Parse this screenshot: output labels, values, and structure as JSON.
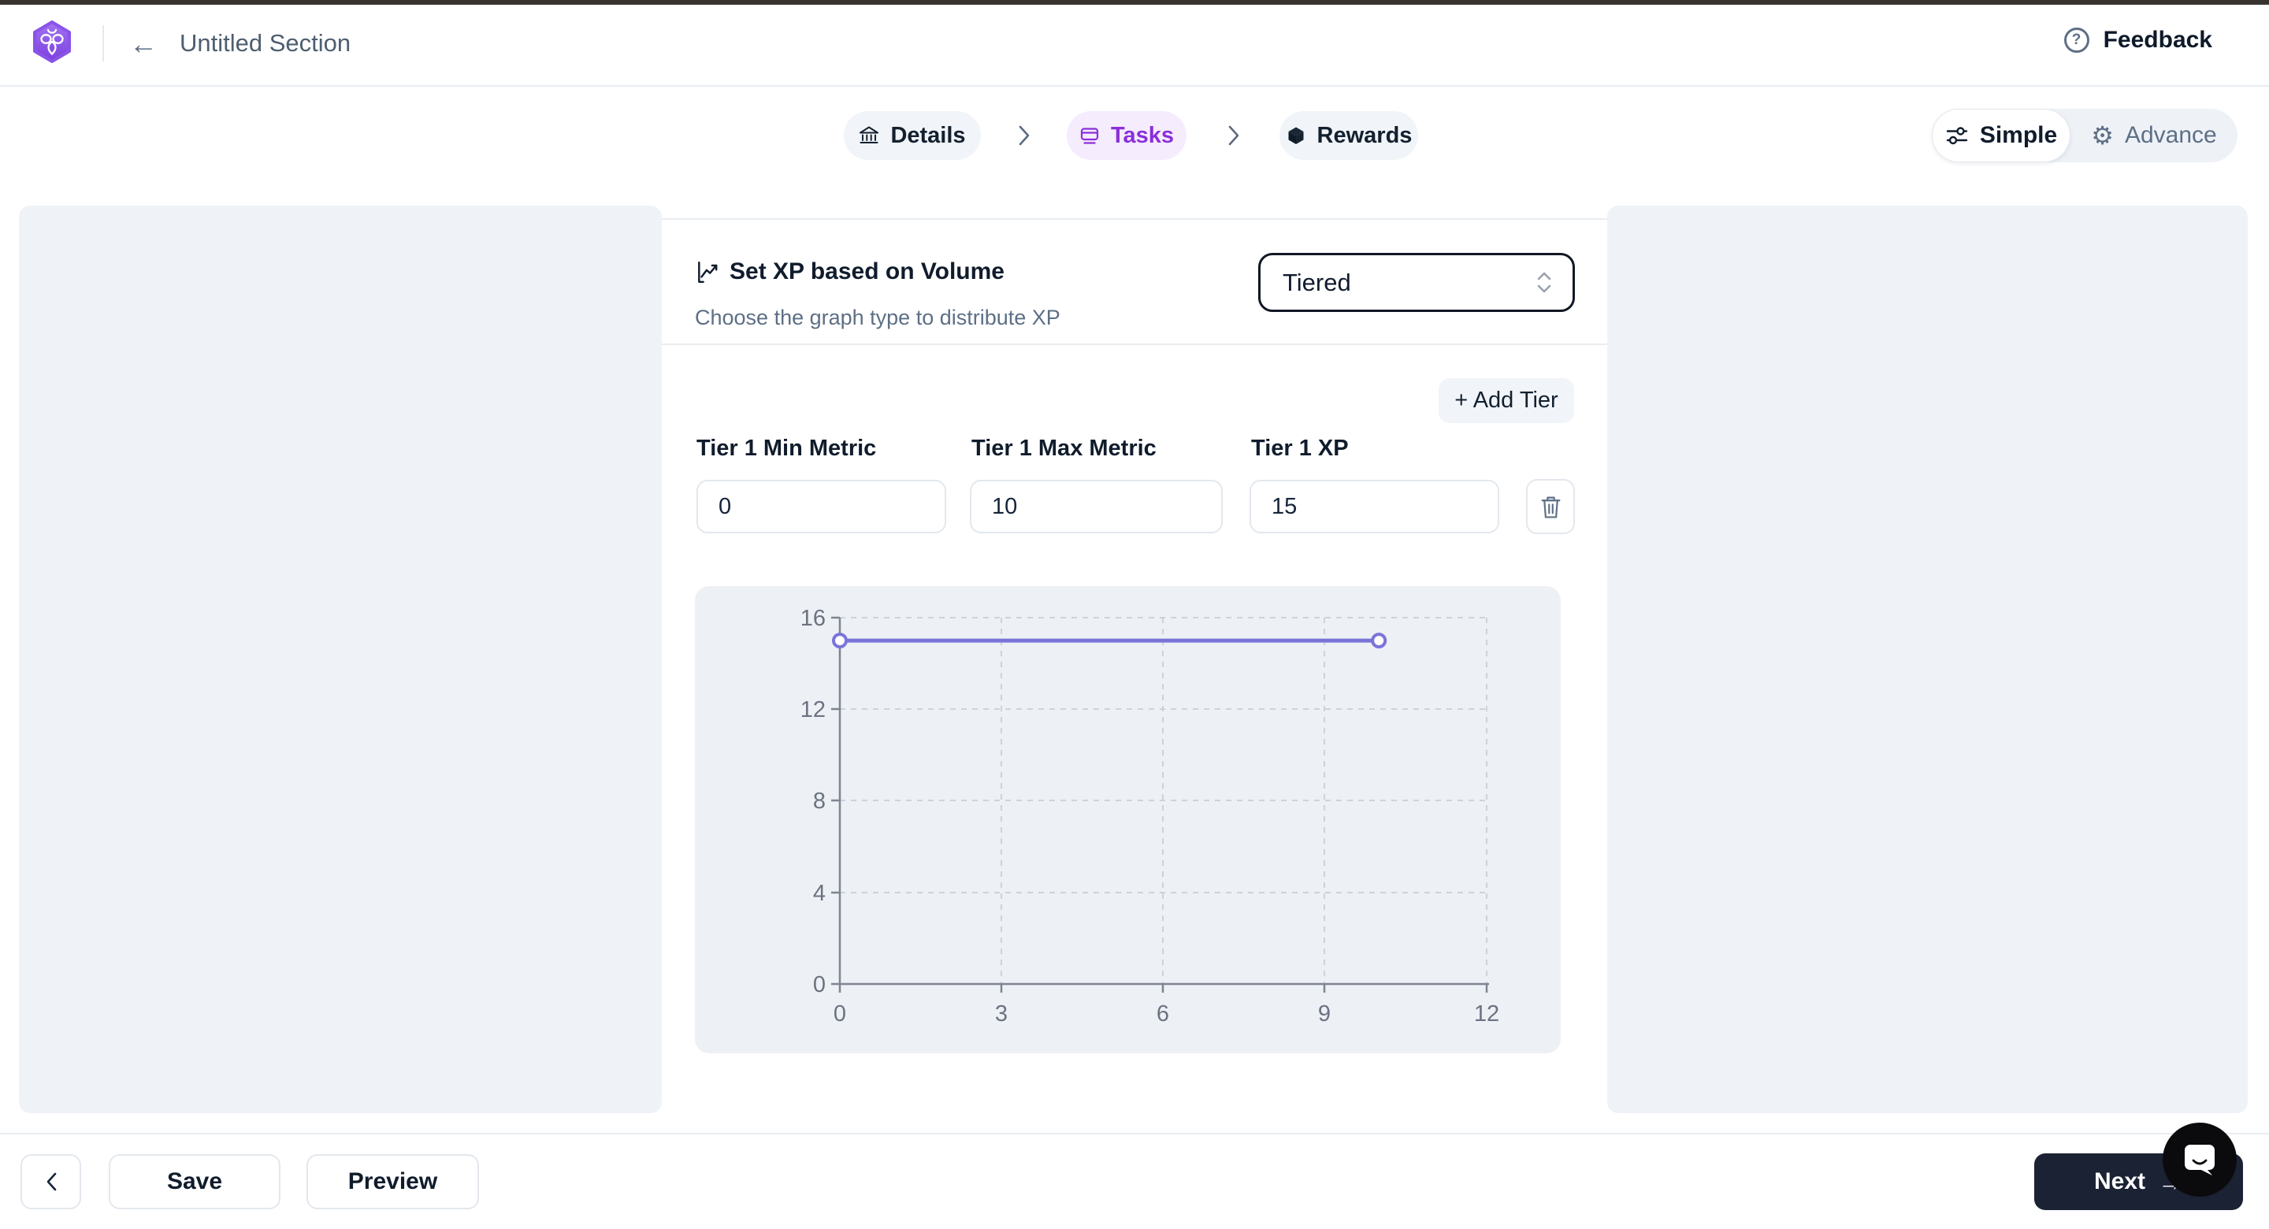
{
  "header": {
    "title": "Untitled Section",
    "feedback_label": "Feedback",
    "back_glyph": "←"
  },
  "stepper": {
    "steps": [
      {
        "label": "Details",
        "icon": "bank-icon",
        "active": false
      },
      {
        "label": "Tasks",
        "icon": "tasks-icon",
        "active": true
      },
      {
        "label": "Rewards",
        "icon": "cube-icon",
        "active": false
      }
    ]
  },
  "mode_toggle": {
    "options": [
      {
        "label": "Simple",
        "icon": "sliders-icon",
        "active": true
      },
      {
        "label": "Advance",
        "icon": "gear-icon",
        "active": false
      }
    ],
    "gear_glyph": "⚙"
  },
  "xp_section": {
    "title": "Set XP based on Volume",
    "subtitle": "Choose the graph type to distribute XP",
    "graph_type_select": {
      "value": "Tiered"
    }
  },
  "tier_section": {
    "add_tier_label": "+ Add Tier",
    "fields": [
      {
        "label": "Tier 1 Min Metric",
        "value": "0"
      },
      {
        "label": "Tier 1 Max Metric",
        "value": "10"
      },
      {
        "label": "Tier 1 XP",
        "value": "15"
      }
    ]
  },
  "chart_data": {
    "type": "line",
    "title": "",
    "xlabel": "",
    "ylabel": "",
    "series": [
      {
        "name": "Tier 1 XP",
        "points": [
          {
            "x": 0,
            "y": 15
          },
          {
            "x": 10,
            "y": 15
          }
        ]
      }
    ],
    "x_ticks": [
      "0",
      "3",
      "6",
      "9",
      "12"
    ],
    "y_ticks": [
      "0",
      "4",
      "8",
      "12",
      "16"
    ],
    "xlim": [
      0,
      12
    ],
    "ylim": [
      0,
      16
    ],
    "grid": "dashed",
    "legend": "none",
    "line_color": "#7b74d8",
    "point_style": "open-circle"
  },
  "footer": {
    "back_label": "",
    "save_label": "Save",
    "preview_label": "Preview",
    "next_label": "Next",
    "next_arrow": "→"
  },
  "colors": {
    "accent_purple": "#8b2fd9",
    "chart_line": "#7b74d8",
    "next_button_bg": "#1b2234",
    "panel_gray": "#eff2f7",
    "chart_panel_bg": "#edf0f5",
    "active_step_bg": "#f5ecfe",
    "inactive_step_bg": "#f1f4f8"
  }
}
